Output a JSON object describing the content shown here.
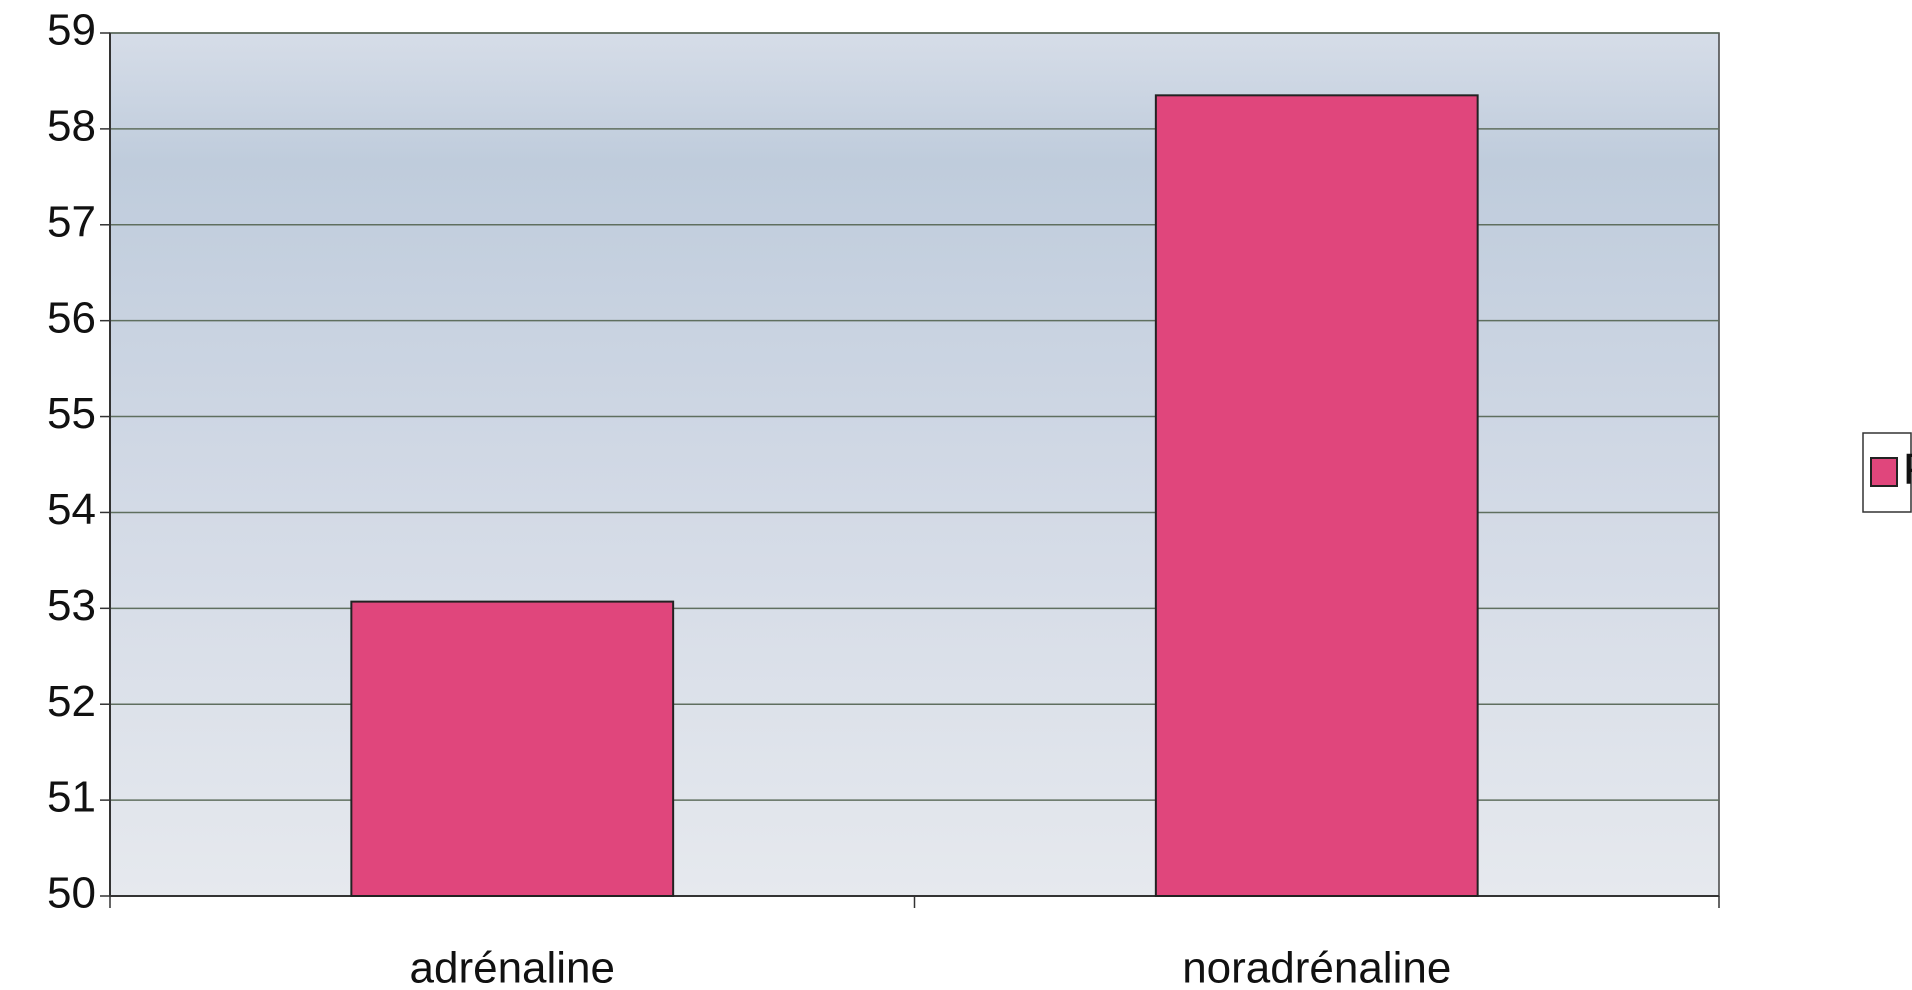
{
  "chart_data": {
    "type": "bar",
    "categories": [
      "adrénaline",
      "noradrénaline"
    ],
    "series": [
      {
        "name": "PAM",
        "color": "#e0467c",
        "values": [
          53.07,
          58.35
        ]
      }
    ],
    "ylim": [
      50,
      59
    ],
    "yticks": [
      50,
      51,
      52,
      53,
      54,
      55,
      56,
      57,
      58,
      59
    ],
    "grid": true,
    "legend": "right"
  }
}
